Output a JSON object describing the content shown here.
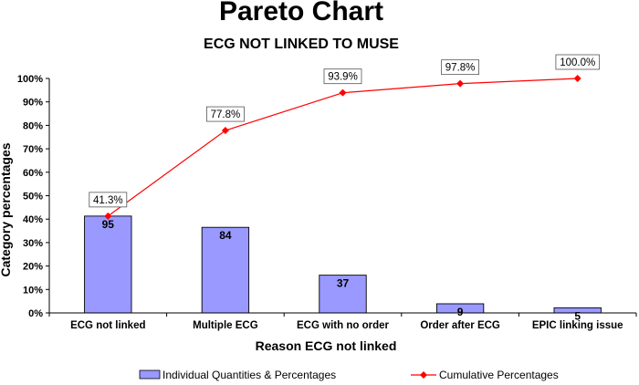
{
  "chart_data": {
    "type": "bar",
    "title": "Pareto Chart",
    "subtitle": "ECG NOT LINKED TO MUSE",
    "xlabel": "Reason ECG not linked",
    "ylabel": "Category percentages",
    "ylim": [
      0,
      100
    ],
    "yticks": [
      "0%",
      "10%",
      "20%",
      "30%",
      "40%",
      "50%",
      "60%",
      "70%",
      "80%",
      "90%",
      "100%"
    ],
    "categories": [
      "ECG not linked",
      "Multiple ECG",
      "ECG with no order",
      "Order after ECG",
      "EPIC linking issue"
    ],
    "series": [
      {
        "name": "Individual Quantities & Percentages",
        "type": "bar",
        "values": [
          41.3,
          36.5,
          16.1,
          3.9,
          2.2
        ],
        "labels": [
          "95",
          "84",
          "37",
          "9",
          "5"
        ],
        "color": "#9999ff"
      },
      {
        "name": "Cumulative Percentages",
        "type": "line",
        "values": [
          41.3,
          77.8,
          93.9,
          97.8,
          100.0
        ],
        "labels": [
          "41.3%",
          "77.8%",
          "93.9%",
          "97.8%",
          "100.0%"
        ],
        "color": "#ff0000"
      }
    ],
    "grid": false,
    "legend": "bottom"
  }
}
